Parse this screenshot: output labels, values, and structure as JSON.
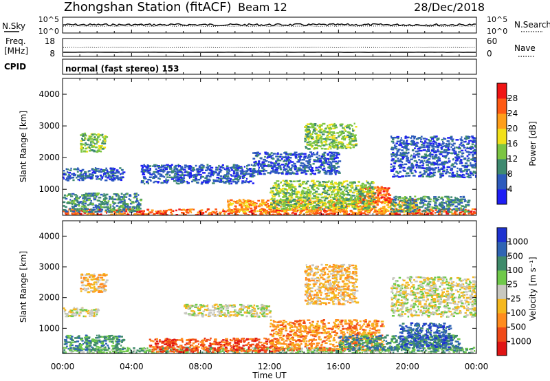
{
  "header": {
    "station": "Zhongshan Station (fitACF)",
    "beam": "Beam 12",
    "date": "28/Dec/2018"
  },
  "strip_panels": {
    "nsky": {
      "left_label": "N.Sky",
      "left_ticks": [
        "10^5",
        "10^0"
      ],
      "right_ticks": [
        "10^5",
        "10^0"
      ],
      "right_label": "N.Search",
      "right_legend_line": "dotted"
    },
    "freq": {
      "left_label_1": "Freq.",
      "left_label_2": "[MHz]",
      "left_ticks": [
        "18",
        "8"
      ],
      "right_ticks": [
        "60",
        "0"
      ],
      "right_label": "Nave",
      "right_legend_line": "dotted"
    },
    "cpid": {
      "label": "CPID",
      "text": "normal (fast stereo) 153"
    }
  },
  "chart_data": [
    {
      "type": "heatmap",
      "name": "power",
      "ylabel": "Slant Range [km]",
      "ylim": [
        180,
        4500
      ],
      "y_ticks": [
        "1000",
        "2000",
        "3000",
        "4000"
      ],
      "xlim_hours": [
        0,
        24
      ],
      "x_tick_labels": [
        "00:00",
        "04:00",
        "08:00",
        "12:00",
        "16:00",
        "20:00",
        "00:00"
      ],
      "colorbar": {
        "label": "Power [dB]",
        "tick_labels": [
          "4",
          "8",
          "12",
          "16",
          "20",
          "24",
          "28"
        ],
        "colors": [
          "#1e1ef5",
          "#2d5bbd",
          "#3e8a70",
          "#7cc542",
          "#f2e11a",
          "#ff9e1a",
          "#ff5a14",
          "#f01414"
        ]
      },
      "regions": [
        {
          "t": [
            0.0,
            24.0
          ],
          "r": [
            180,
            400
          ],
          "level": 6
        },
        {
          "t": [
            9.5,
            20.5
          ],
          "r": [
            300,
            700
          ],
          "level": 5
        },
        {
          "t": [
            17.0,
            19.0
          ],
          "r": [
            600,
            1100
          ],
          "level": 6
        },
        {
          "t": [
            12.0,
            18.0
          ],
          "r": [
            400,
            1300
          ],
          "level": 3
        },
        {
          "t": [
            19.0,
            23.5
          ],
          "r": [
            300,
            800
          ],
          "level": 2
        },
        {
          "t": [
            0.0,
            4.5
          ],
          "r": [
            300,
            900
          ],
          "level": 2
        },
        {
          "t": [
            0.0,
            3.5
          ],
          "r": [
            1300,
            1700
          ],
          "level": 1
        },
        {
          "t": [
            4.5,
            11.0
          ],
          "r": [
            1200,
            1800
          ],
          "level": 1
        },
        {
          "t": [
            11.0,
            16.0
          ],
          "r": [
            1500,
            2200
          ],
          "level": 1
        },
        {
          "t": [
            19.0,
            24.0
          ],
          "r": [
            1400,
            2700
          ],
          "level": 1
        },
        {
          "t": [
            1.0,
            2.5
          ],
          "r": [
            2200,
            2800
          ],
          "level": 3
        },
        {
          "t": [
            14.0,
            17.0
          ],
          "r": [
            2300,
            3100
          ],
          "level": 3
        }
      ]
    },
    {
      "type": "heatmap",
      "name": "velocity",
      "ylabel": "Slant Range [km]",
      "ylim": [
        180,
        4500
      ],
      "y_ticks": [
        "1000",
        "2000",
        "3000",
        "4000"
      ],
      "xlim_hours": [
        0,
        24
      ],
      "x_tick_labels": [
        "00:00",
        "04:00",
        "08:00",
        "12:00",
        "16:00",
        "20:00",
        "00:00"
      ],
      "xlabel": "Time UT",
      "colorbar": {
        "label": "Velocity [m s⁻¹]",
        "tick_labels": [
          "-1000",
          "-500",
          "-100",
          "-25",
          "25",
          "100",
          "500",
          "1000"
        ],
        "colors": [
          "#e01414",
          "#f04a18",
          "#ff8c1e",
          "#f5b81e",
          "#c8c8c0",
          "#6fc94a",
          "#3e8a6a",
          "#2f64b4",
          "#1e32d0"
        ]
      },
      "regions": [
        {
          "t": [
            0.0,
            24.0
          ],
          "r": [
            180,
            400
          ],
          "level": 5
        },
        {
          "t": [
            5.0,
            12.5
          ],
          "r": [
            250,
            700
          ],
          "level": 1
        },
        {
          "t": [
            12.0,
            18.5
          ],
          "r": [
            300,
            1300
          ],
          "level": 2
        },
        {
          "t": [
            16.0,
            23.0
          ],
          "r": [
            300,
            800
          ],
          "level": 6
        },
        {
          "t": [
            19.5,
            22.5
          ],
          "r": [
            400,
            1200
          ],
          "level": 7
        },
        {
          "t": [
            0.0,
            3.5
          ],
          "r": [
            300,
            800
          ],
          "level": 6
        },
        {
          "t": [
            0.0,
            2.0
          ],
          "r": [
            1400,
            1700
          ],
          "level": 4
        },
        {
          "t": [
            7.0,
            12.0
          ],
          "r": [
            1400,
            1800
          ],
          "level": 4
        },
        {
          "t": [
            19.0,
            24.0
          ],
          "r": [
            1400,
            2700
          ],
          "level": 4
        },
        {
          "t": [
            1.0,
            2.5
          ],
          "r": [
            2200,
            2800
          ],
          "level": 3
        },
        {
          "t": [
            14.0,
            17.0
          ],
          "r": [
            1800,
            3100
          ],
          "level": 3
        }
      ]
    }
  ]
}
